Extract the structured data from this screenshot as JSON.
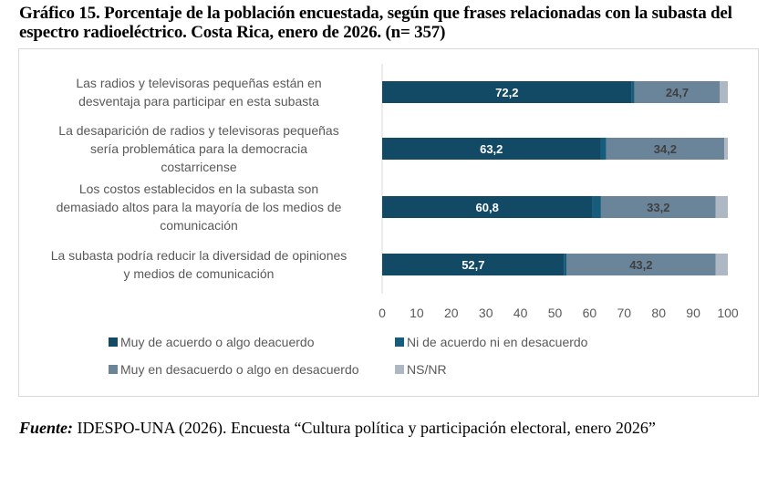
{
  "title": "Gráfico 15. Porcentaje de la población encuestada, según que frases relacionadas con la subasta del espectro radioeléctrico. Costa Rica, enero de 2026.  (n= 357)",
  "source": {
    "label": "Fuente:",
    "text": " IDESPO-UNA (2026). Encuesta “Cultura política y participación electoral, enero 2026”"
  },
  "chart_data": {
    "type": "bar",
    "orientation": "horizontal",
    "stacked": true,
    "title": "Gráfico 15. Porcentaje de la población encuestada, según que frases relacionadas con la subasta del espectro radioeléctrico. Costa Rica, enero de 2026.  (n= 357)",
    "xlabel": "",
    "ylabel": "",
    "xlim": [
      0,
      100
    ],
    "xticks": [
      "0",
      "10",
      "20",
      "30",
      "40",
      "50",
      "60",
      "70",
      "80",
      "90",
      "100"
    ],
    "grid": false,
    "legend_position": "bottom",
    "categories": [
      [
        "Las radios y televisoras pequeñas están en",
        "desventaja para participar en esta subasta"
      ],
      [
        "La desaparición de radios y televisoras pequeñas",
        "sería problemática para la democracia",
        "costarricense"
      ],
      [
        "Los costos establecidos en la subasta son",
        "demasiado altos para la mayoría de los medios de",
        "comunicación"
      ],
      [
        "La subasta podría reducir la diversidad de opiniones",
        "y medios de comunicación"
      ]
    ],
    "series": [
      {
        "name": "Muy de acuerdo o algo deacuerdo",
        "color": "#124A65",
        "labels_shown": true,
        "label_color": "light",
        "values": [
          72.2,
          63.2,
          60.8,
          52.7
        ]
      },
      {
        "name": "Ni de acuerdo ni en desacuerdo",
        "color": "#165C7D",
        "labels_shown": false,
        "values": [
          0.8,
          1.6,
          2.5,
          0.6
        ]
      },
      {
        "name": "Muy en desacuerdo o algo en desacuerdo",
        "color": "#6A8499",
        "labels_shown": true,
        "label_color": "dark",
        "values": [
          24.7,
          34.2,
          33.2,
          43.2
        ]
      },
      {
        "name": "NS/NR",
        "color": "#ADB8C4",
        "labels_shown": false,
        "values": [
          2.3,
          1.0,
          3.5,
          3.5
        ]
      }
    ],
    "value_labels": [
      [
        "72,2",
        "",
        "24,7",
        ""
      ],
      [
        "63,2",
        "",
        "34,2",
        ""
      ],
      [
        "60,8",
        "",
        "33,2",
        ""
      ],
      [
        "52,7",
        "",
        "43,2",
        ""
      ]
    ]
  }
}
